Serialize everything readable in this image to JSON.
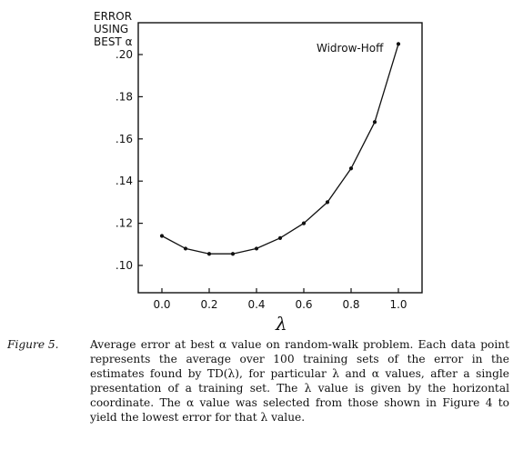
{
  "chart_data": {
    "type": "line",
    "ylabel": [
      "ERROR",
      "USING",
      "BEST α"
    ],
    "xlabel": "λ",
    "xlim": [
      0.0,
      1.0
    ],
    "ylim": [
      0.1,
      0.2
    ],
    "x_ticks": [
      "0.0",
      "0.2",
      "0.4",
      "0.6",
      "0.8",
      "1.0"
    ],
    "y_ticks": [
      ".10",
      ".12",
      ".14",
      ".16",
      ".18",
      ".20"
    ],
    "grid": false,
    "legend_position": "top-right",
    "series": [
      {
        "name": "Widrow-Hoff",
        "x": [
          0.0,
          0.1,
          0.2,
          0.3,
          0.4,
          0.5,
          0.6,
          0.7,
          0.8,
          0.9,
          1.0
        ],
        "y": [
          0.114,
          0.108,
          0.1055,
          0.1055,
          0.108,
          0.113,
          0.12,
          0.13,
          0.146,
          0.168,
          0.205
        ]
      }
    ]
  },
  "caption": {
    "label": "Figure 5.",
    "text": "Average error at best α value on random-walk problem. Each data point represents the average over 100 training sets of the error in the estimates found by TD(λ), for particular λ and α values, after a single presentation of a training set. The λ value is given by the horizontal coordinate. The α value was selected from those shown in Figure 4 to yield the lowest error for that λ value."
  }
}
